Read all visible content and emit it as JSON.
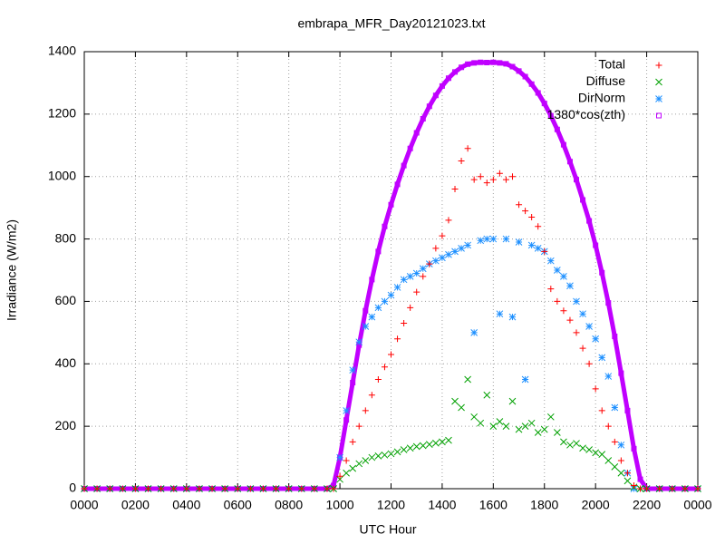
{
  "chart_data": {
    "type": "scatter",
    "title": "embrapa_MFR_Day20121023.txt",
    "x_label": "UTC Hour",
    "y_label": "Irradiance (W/m2)",
    "legend": "upper right",
    "grid": true,
    "xlim": [
      0,
      24
    ],
    "ylim": [
      0,
      1400
    ],
    "xticks": [
      {
        "value": 0,
        "label": "0000"
      },
      {
        "value": 2,
        "label": "0200"
      },
      {
        "value": 4,
        "label": "0400"
      },
      {
        "value": 6,
        "label": "0600"
      },
      {
        "value": 8,
        "label": "0800"
      },
      {
        "value": 10,
        "label": "1000"
      },
      {
        "value": 12,
        "label": "1200"
      },
      {
        "value": 14,
        "label": "1400"
      },
      {
        "value": 16,
        "label": "1600"
      },
      {
        "value": 18,
        "label": "1800"
      },
      {
        "value": 20,
        "label": "2000"
      },
      {
        "value": 22,
        "label": "2200"
      },
      {
        "value": 24,
        "label": "0000"
      }
    ],
    "yticks": [
      0,
      200,
      400,
      600,
      800,
      1000,
      1200,
      1400
    ],
    "x": [
      0,
      0.5,
      1,
      1.5,
      2,
      2.5,
      3,
      3.5,
      4,
      4.5,
      5,
      5.5,
      6,
      6.5,
      7,
      7.5,
      8,
      8.5,
      9,
      9.5,
      9.75,
      10,
      10.25,
      10.5,
      10.75,
      11,
      11.25,
      11.5,
      11.75,
      12,
      12.25,
      12.5,
      12.75,
      13,
      13.25,
      13.5,
      13.75,
      14,
      14.25,
      14.5,
      14.75,
      15,
      15.25,
      15.5,
      15.75,
      16,
      16.25,
      16.5,
      16.75,
      17,
      17.25,
      17.5,
      17.75,
      18,
      18.25,
      18.5,
      18.75,
      19,
      19.25,
      19.5,
      19.75,
      20,
      20.25,
      20.5,
      20.75,
      21,
      21.25,
      21.5,
      21.75,
      22,
      22.5,
      23,
      23.5,
      24
    ],
    "series": [
      {
        "name": "Total",
        "color": "#ff0000",
        "marker": "plus",
        "values": [
          0,
          0,
          0,
          0,
          0,
          0,
          0,
          0,
          0,
          0,
          0,
          0,
          0,
          0,
          0,
          0,
          0,
          0,
          0,
          0,
          0,
          40,
          90,
          150,
          200,
          250,
          300,
          350,
          390,
          430,
          480,
          530,
          580,
          630,
          680,
          720,
          770,
          810,
          860,
          960,
          1050,
          1090,
          990,
          1000,
          980,
          990,
          1010,
          990,
          1000,
          910,
          890,
          870,
          840,
          760,
          640,
          600,
          570,
          540,
          500,
          450,
          400,
          320,
          250,
          200,
          150,
          90,
          50,
          10,
          0,
          0,
          0,
          0,
          0,
          0
        ]
      },
      {
        "name": "Diffuse",
        "color": "#00a000",
        "marker": "cross",
        "values": [
          0,
          0,
          0,
          0,
          0,
          0,
          0,
          0,
          0,
          0,
          0,
          0,
          0,
          0,
          0,
          0,
          0,
          0,
          0,
          0,
          0,
          30,
          50,
          65,
          80,
          90,
          100,
          105,
          108,
          112,
          118,
          125,
          130,
          135,
          138,
          142,
          146,
          150,
          155,
          280,
          260,
          350,
          230,
          210,
          300,
          200,
          215,
          200,
          280,
          190,
          200,
          210,
          180,
          190,
          230,
          180,
          150,
          140,
          145,
          130,
          125,
          115,
          110,
          90,
          70,
          50,
          25,
          5,
          0,
          0,
          0,
          0,
          0,
          0
        ]
      },
      {
        "name": "DirNorm",
        "color": "#1e90ff",
        "marker": "star",
        "values": [
          0,
          0,
          0,
          0,
          0,
          0,
          0,
          0,
          0,
          0,
          0,
          0,
          0,
          0,
          0,
          0,
          0,
          0,
          0,
          0,
          0,
          100,
          250,
          380,
          470,
          520,
          550,
          580,
          600,
          620,
          645,
          670,
          680,
          690,
          705,
          720,
          730,
          740,
          750,
          760,
          770,
          780,
          500,
          795,
          800,
          800,
          560,
          800,
          550,
          790,
          350,
          780,
          770,
          760,
          730,
          700,
          680,
          650,
          600,
          560,
          520,
          480,
          420,
          360,
          260,
          140,
          50,
          0,
          0,
          0,
          0,
          0,
          0,
          0
        ]
      },
      {
        "name": "1380*cos(zth)",
        "color": "#c000ff",
        "marker": "square",
        "values": [
          0,
          0,
          0,
          0,
          0,
          0,
          0,
          0,
          0,
          0,
          0,
          0,
          0,
          0,
          0,
          0,
          0,
          0,
          0,
          0,
          10,
          100,
          220,
          340,
          460,
          570,
          670,
          760,
          840,
          910,
          975,
          1035,
          1090,
          1140,
          1185,
          1225,
          1260,
          1290,
          1315,
          1335,
          1350,
          1360,
          1364,
          1366,
          1365,
          1366,
          1364,
          1361,
          1352,
          1338,
          1320,
          1296,
          1268,
          1234,
          1195,
          1151,
          1102,
          1048,
          990,
          925,
          858,
          780,
          692,
          595,
          488,
          370,
          250,
          128,
          30,
          0,
          0,
          0,
          0,
          0
        ]
      }
    ]
  }
}
